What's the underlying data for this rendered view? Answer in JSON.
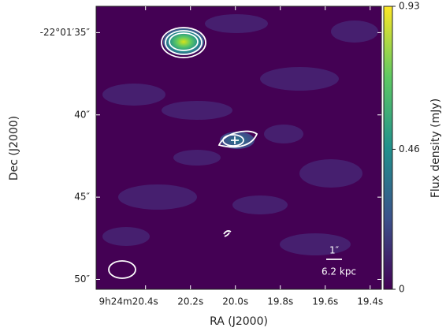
{
  "chart_data": {
    "type": "image",
    "xlabel": "RA (J2000)",
    "ylabel": "Dec (J2000)",
    "xlim": [
      20.62,
      19.35
    ],
    "xticks": [
      {
        "value": 20.4,
        "label": "9h24m20.4s"
      },
      {
        "value": 20.2,
        "label": "20.2s"
      },
      {
        "value": 20.0,
        "label": "20.0s"
      },
      {
        "value": 19.8,
        "label": "19.8s"
      },
      {
        "value": 19.6,
        "label": "19.6s"
      },
      {
        "value": 19.4,
        "label": "19.4s"
      }
    ],
    "ylim": [
      33.4,
      50.6
    ],
    "yticks": [
      {
        "value": 35,
        "label": "-22°01′35″"
      },
      {
        "value": 40,
        "label": "40″"
      },
      {
        "value": 45,
        "label": "45″"
      },
      {
        "value": 50,
        "label": "50″"
      }
    ],
    "colorbar": {
      "label": "Flux density (mJy)",
      "lim": [
        0,
        0.93
      ],
      "ticks": [
        0,
        0.46,
        0.93
      ],
      "colormap": [
        "#440154",
        "#3b528b",
        "#21918c",
        "#5ec962",
        "#fde725"
      ]
    },
    "annotations": [
      "1″",
      "6.2 kpc"
    ]
  }
}
